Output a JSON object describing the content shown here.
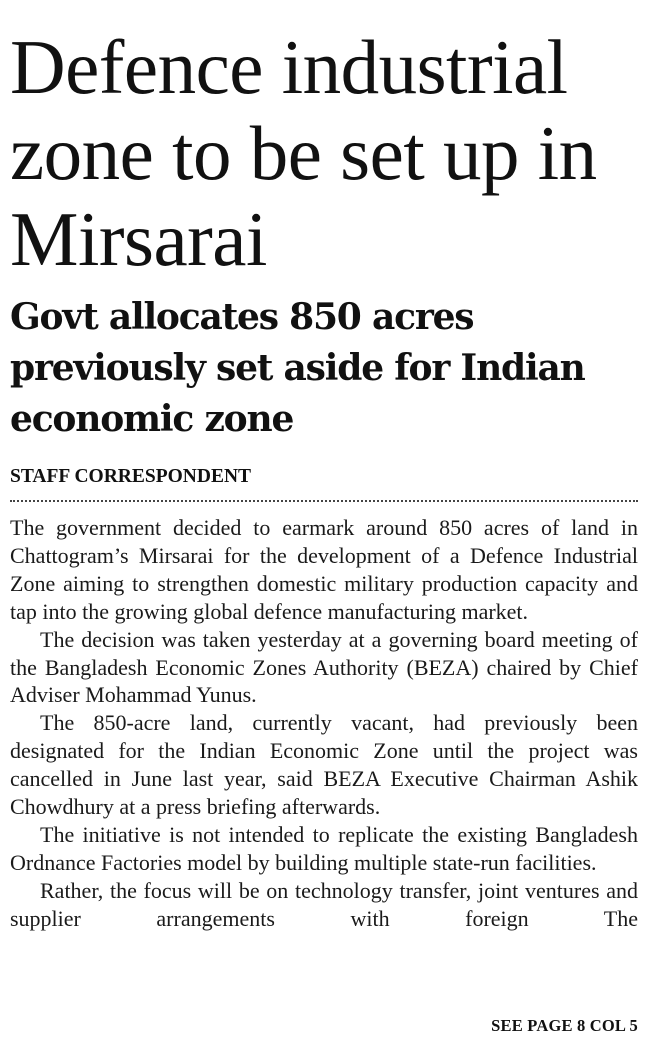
{
  "article": {
    "headline": "Defence industrial zone to be set up in Mirsarai",
    "subheadline": "Govt allocates 850 acres previously set aside for Indian economic zone",
    "byline": "STAFF CORRESPONDENT",
    "paragraphs": [
      "The government decided to earmark around 850 acres of land in Chattogram’s Mirsarai for the development of a Defence Industrial Zone aiming to strengthen domestic military production capacity and tap into the growing global defence manufacturing market.",
      "The decision was taken yesterday at a governing board meeting of the Bangladesh Economic Zones Authority (BEZA) chaired by Chief Adviser Mohammad Yunus.",
      "The 850-acre land, currently vacant, had previously been designated for the Indian Economic Zone until the project was cancelled in June last year, said BEZA Executive Chairman Ashik Chowdhury at a press briefing afterwards.",
      "The initiative is not intended to replicate the existing Bangladesh Ordnance Factories model by building multiple state-run facilities.",
      "Rather, the focus will be on technology transfer, joint ventures and supplier arrangements with foreign The"
    ],
    "continuation": "SEE PAGE 8 COL 5"
  }
}
